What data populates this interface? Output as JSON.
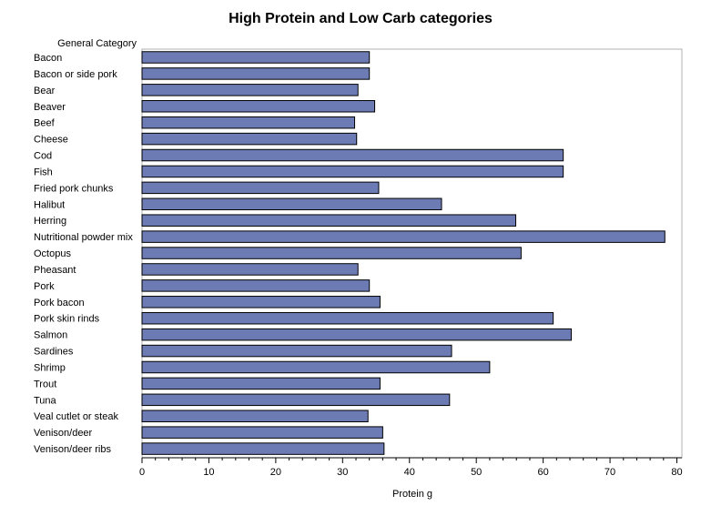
{
  "chart_data": {
    "type": "bar",
    "orientation": "horizontal",
    "title": "High Protein and Low Carb categories",
    "category_axis_label": "General Category",
    "xlabel": "Protein g",
    "xlim": [
      0,
      80
    ],
    "xticks": [
      0,
      10,
      20,
      30,
      40,
      50,
      60,
      70,
      80
    ],
    "bar_color": "#6c7bb4",
    "grid": false,
    "categories": [
      "Bacon",
      "Bacon or side pork",
      "Bear",
      "Beaver",
      "Beef",
      "Cheese",
      "Cod",
      "Fish",
      "Fried pork chunks",
      "Halibut",
      "Herring",
      "Nutritional powder mix",
      "Octopus",
      "Pheasant",
      "Pork",
      "Pork bacon",
      "Pork skin rinds",
      "Salmon",
      "Sardines",
      "Shrimp",
      "Trout",
      "Tuna",
      "Veal cutlet or steak",
      "Venison/deer",
      "Venison/deer ribs"
    ],
    "values": [
      34.0,
      34.0,
      32.3,
      34.8,
      31.8,
      32.1,
      63.0,
      63.0,
      35.4,
      44.8,
      55.9,
      78.2,
      56.7,
      32.3,
      34.0,
      35.6,
      61.5,
      64.2,
      46.3,
      52.0,
      35.6,
      46.0,
      33.8,
      36.0,
      36.2
    ]
  }
}
